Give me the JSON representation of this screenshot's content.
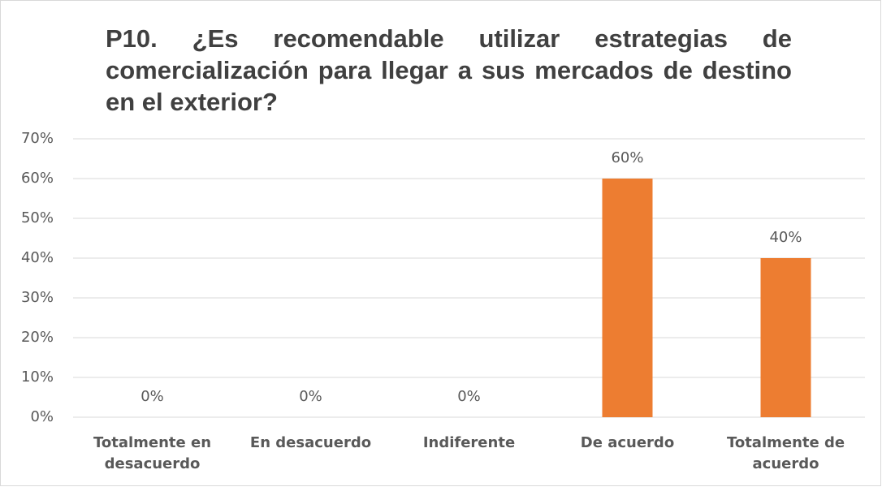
{
  "chart_data": {
    "type": "bar",
    "title": "P10. ¿Es recomendable utilizar estrategias de comercialización para llegar a sus mercados de destino en el exterior?",
    "categories": [
      "Totalmente en desacuerdo",
      "En desacuerdo",
      "Indiferente",
      "De acuerdo",
      "Totalmente de acuerdo"
    ],
    "values": [
      0,
      0,
      0,
      60,
      40
    ],
    "value_labels": [
      "0%",
      "0%",
      "0%",
      "60%",
      "40%"
    ],
    "color": "#ed7d31",
    "ylim": [
      0,
      70
    ],
    "yticks": [
      {
        "value": 0,
        "label": "0%"
      },
      {
        "value": 10,
        "label": "10%"
      },
      {
        "value": 20,
        "label": "20%"
      },
      {
        "value": 30,
        "label": "30%"
      },
      {
        "value": 40,
        "label": "40%"
      },
      {
        "value": 50,
        "label": "50%"
      },
      {
        "value": 60,
        "label": "60%"
      },
      {
        "value": 70,
        "label": "70%"
      }
    ],
    "grid": true
  }
}
